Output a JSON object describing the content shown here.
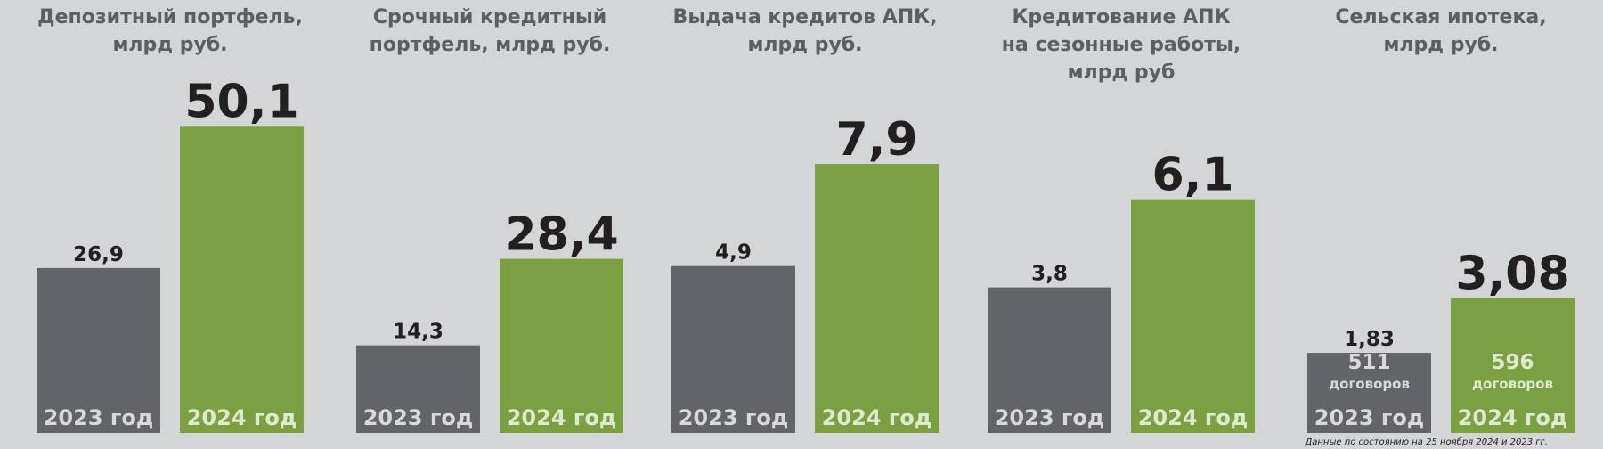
{
  "chart_data": [
    {
      "type": "bar",
      "title": [
        "Депозитный портфель,",
        "млрд руб."
      ],
      "categories": [
        "2023 год",
        "2024 год"
      ],
      "values": [
        26.9,
        50.1
      ],
      "value_labels": [
        "26,9",
        "50,1"
      ],
      "colors": [
        "#636468",
        "#7aa043"
      ],
      "ylim": [
        0,
        50
      ]
    },
    {
      "type": "bar",
      "title": [
        "Срочный кредитный",
        "портфель, млрд руб."
      ],
      "categories": [
        "2023 год",
        "2024 год"
      ],
      "values": [
        14.3,
        28.4
      ],
      "value_labels": [
        "14,3",
        "28,4"
      ],
      "colors": [
        "#636468",
        "#7aa043"
      ],
      "ylim": [
        0,
        50
      ]
    },
    {
      "type": "bar",
      "title": [
        "Выдача кредитов АПК,",
        "млрд руб."
      ],
      "categories": [
        "2023 год",
        "2024 год"
      ],
      "values": [
        4.9,
        7.9
      ],
      "value_labels": [
        "4,9",
        "7,9"
      ],
      "colors": [
        "#636468",
        "#7aa043"
      ],
      "ylim": [
        0,
        9
      ]
    },
    {
      "type": "bar",
      "title": [
        "Кредитование АПК",
        "на сезонные работы,",
        "млрд руб"
      ],
      "categories": [
        "2023 год",
        "2024 год"
      ],
      "values": [
        3.8,
        6.1
      ],
      "value_labels": [
        "3,8",
        "6,1"
      ],
      "colors": [
        "#636468",
        "#7aa043"
      ],
      "ylim": [
        0,
        8
      ]
    },
    {
      "type": "bar",
      "title": [
        "Сельская ипотека,",
        "млрд руб."
      ],
      "categories": [
        "2023 год",
        "2024 год"
      ],
      "values": [
        1.83,
        3.08
      ],
      "value_labels": [
        "1,83",
        "3,08"
      ],
      "colors": [
        "#636468",
        "#7aa043"
      ],
      "ylim": [
        0,
        7
      ],
      "bar_notes": [
        [
          "511",
          "договоров"
        ],
        [
          "596",
          "договоров"
        ]
      ]
    }
  ],
  "footnote": "Данные по состоянию на 25 ноября 2024 и 2023 гг."
}
